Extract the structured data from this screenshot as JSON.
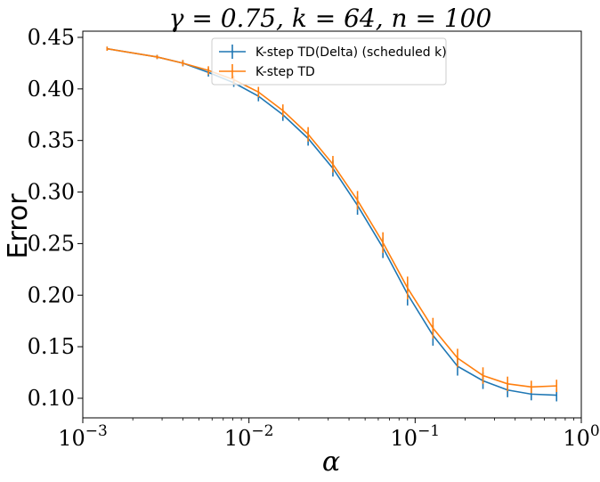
{
  "chart_data": {
    "type": "line",
    "title": "γ = 0.75, k = 64, n = 100",
    "xlabel": "α",
    "ylabel": "Error",
    "x_scale": "log",
    "xlim": [
      0.001,
      1
    ],
    "ylim": [
      0.081,
      0.456
    ],
    "x_ticks": [
      {
        "value": 0.001,
        "base": "10",
        "exp": "−3"
      },
      {
        "value": 0.01,
        "base": "10",
        "exp": "−2"
      },
      {
        "value": 0.1,
        "base": "10",
        "exp": "−1"
      },
      {
        "value": 1,
        "base": "10",
        "exp": "0"
      }
    ],
    "y_ticks": [
      {
        "value": 0.1,
        "label": "0.10"
      },
      {
        "value": 0.15,
        "label": "0.15"
      },
      {
        "value": 0.2,
        "label": "0.20"
      },
      {
        "value": 0.25,
        "label": "0.25"
      },
      {
        "value": 0.3,
        "label": "0.30"
      },
      {
        "value": 0.35,
        "label": "0.35"
      },
      {
        "value": 0.4,
        "label": "0.40"
      },
      {
        "value": 0.45,
        "label": "0.45"
      }
    ],
    "grid": false,
    "legend_placement": "top-center",
    "x": [
      0.0014,
      0.0028,
      0.004,
      0.0057,
      0.0081,
      0.0114,
      0.016,
      0.0227,
      0.032,
      0.045,
      0.064,
      0.09,
      0.128,
      0.18,
      0.256,
      0.36,
      0.5,
      0.71
    ],
    "series": [
      {
        "name": "K-step TD(Delta) (scheduled k)",
        "color": "#1f77b4",
        "values": [
          0.439,
          0.431,
          0.425,
          0.416,
          0.406,
          0.393,
          0.375,
          0.352,
          0.323,
          0.287,
          0.246,
          0.201,
          0.161,
          0.131,
          0.117,
          0.108,
          0.104,
          0.103
        ],
        "errors": [
          0.002,
          0.002,
          0.003,
          0.004,
          0.004,
          0.005,
          0.006,
          0.007,
          0.008,
          0.009,
          0.01,
          0.011,
          0.01,
          0.009,
          0.008,
          0.007,
          0.006,
          0.006
        ]
      },
      {
        "name": "K-step TD",
        "color": "#ff7f0e",
        "values": [
          0.439,
          0.431,
          0.425,
          0.418,
          0.409,
          0.397,
          0.379,
          0.356,
          0.327,
          0.292,
          0.251,
          0.207,
          0.168,
          0.139,
          0.122,
          0.114,
          0.111,
          0.112
        ],
        "errors": [
          0.002,
          0.002,
          0.003,
          0.004,
          0.004,
          0.005,
          0.006,
          0.007,
          0.008,
          0.009,
          0.01,
          0.011,
          0.01,
          0.009,
          0.008,
          0.007,
          0.006,
          0.006
        ]
      }
    ]
  }
}
